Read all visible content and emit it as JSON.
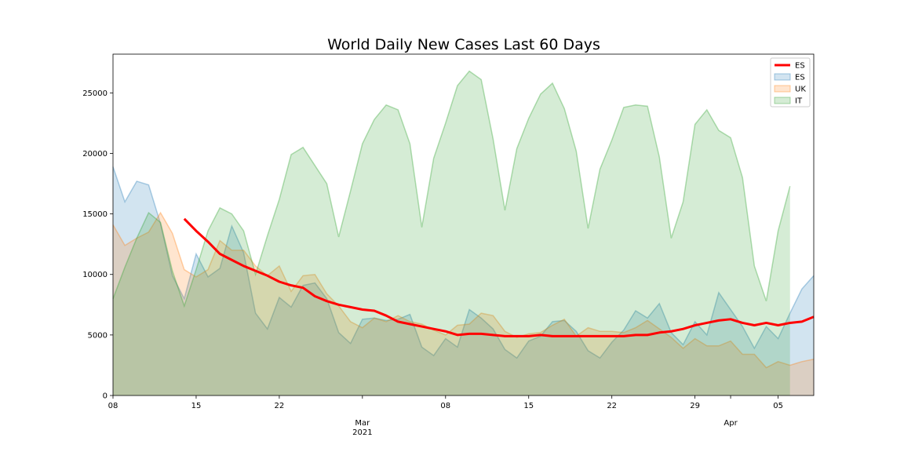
{
  "chart_data": {
    "type": "area",
    "title": "World Daily New Cases Last 60 Days",
    "xlabel": "",
    "ylabel": "",
    "x_range": [
      "2021-02-08",
      "2021-04-08"
    ],
    "ylim": [
      0,
      28200
    ],
    "y_ticks": [
      0,
      5000,
      10000,
      15000,
      20000,
      25000
    ],
    "x_ticks": [
      {
        "date": "2021-02-08",
        "label": "08",
        "sublabel": ""
      },
      {
        "date": "2021-02-15",
        "label": "15",
        "sublabel": ""
      },
      {
        "date": "2021-02-22",
        "label": "22",
        "sublabel": ""
      },
      {
        "date": "2021-03-01",
        "label": "Mar",
        "sublabel": "2021"
      },
      {
        "date": "2021-03-08",
        "label": "08",
        "sublabel": ""
      },
      {
        "date": "2021-03-15",
        "label": "15",
        "sublabel": ""
      },
      {
        "date": "2021-03-22",
        "label": "22",
        "sublabel": ""
      },
      {
        "date": "2021-03-29",
        "label": "29",
        "sublabel": ""
      },
      {
        "date": "2021-04-01",
        "label": "Apr",
        "sublabel": ""
      },
      {
        "date": "2021-04-05",
        "label": "05",
        "sublabel": ""
      }
    ],
    "grid": false,
    "legend_position": "top-right",
    "colors": {
      "ES": "#1f77b4",
      "UK": "#ff7f0e",
      "IT": "#2ca02c",
      "ES_avg": "#ff0000"
    },
    "dates": [
      "2021-02-08",
      "2021-02-09",
      "2021-02-10",
      "2021-02-11",
      "2021-02-12",
      "2021-02-13",
      "2021-02-14",
      "2021-02-15",
      "2021-02-16",
      "2021-02-17",
      "2021-02-18",
      "2021-02-19",
      "2021-02-20",
      "2021-02-21",
      "2021-02-22",
      "2021-02-23",
      "2021-02-24",
      "2021-02-25",
      "2021-02-26",
      "2021-02-27",
      "2021-02-28",
      "2021-03-01",
      "2021-03-02",
      "2021-03-03",
      "2021-03-04",
      "2021-03-05",
      "2021-03-06",
      "2021-03-07",
      "2021-03-08",
      "2021-03-09",
      "2021-03-10",
      "2021-03-11",
      "2021-03-12",
      "2021-03-13",
      "2021-03-14",
      "2021-03-15",
      "2021-03-16",
      "2021-03-17",
      "2021-03-18",
      "2021-03-19",
      "2021-03-20",
      "2021-03-21",
      "2021-03-22",
      "2021-03-23",
      "2021-03-24",
      "2021-03-25",
      "2021-03-26",
      "2021-03-27",
      "2021-03-28",
      "2021-03-29",
      "2021-03-30",
      "2021-03-31",
      "2021-04-01",
      "2021-04-02",
      "2021-04-03",
      "2021-04-04",
      "2021-04-05",
      "2021-04-06",
      "2021-04-07",
      "2021-04-08"
    ],
    "series": [
      {
        "name": "ES",
        "kind": "area",
        "values": [
          18900,
          16000,
          17700,
          17400,
          14200,
          9900,
          8000,
          11700,
          9800,
          10500,
          14000,
          11800,
          6800,
          5500,
          8100,
          7300,
          9100,
          9300,
          8000,
          5200,
          4300,
          6300,
          6400,
          6200,
          6300,
          6700,
          4000,
          3300,
          4700,
          4000,
          7100,
          6400,
          5500,
          3800,
          3100,
          4500,
          4900,
          6100,
          6200,
          5300,
          3700,
          3100,
          4400,
          5400,
          7000,
          6400,
          7600,
          5200,
          4200,
          6100,
          5000,
          8500,
          7100,
          5700,
          3900,
          5700,
          4700,
          6800,
          8800,
          9900
        ]
      },
      {
        "name": "UK",
        "kind": "area",
        "values": [
          14100,
          12400,
          13000,
          13500,
          15100,
          13400,
          10400,
          9800,
          10400,
          12800,
          12000,
          12000,
          10700,
          9900,
          10700,
          8600,
          9900,
          10000,
          8400,
          7400,
          6100,
          5600,
          6400,
          6100,
          6600,
          6100,
          5900,
          5400,
          5000,
          5800,
          5900,
          6800,
          6600,
          5300,
          4800,
          5100,
          5200,
          5800,
          6300,
          4900,
          5600,
          5300,
          5300,
          5200,
          5600,
          6200,
          5500,
          4800,
          3900,
          4700,
          4100,
          4100,
          4500,
          3400,
          3400,
          2300,
          2800,
          2500,
          2800,
          3000
        ]
      },
      {
        "name": "IT",
        "kind": "area",
        "values": [
          8000,
          10600,
          13000,
          15100,
          14300,
          10300,
          7400,
          10400,
          13600,
          15500,
          15000,
          13600,
          10000,
          13200,
          16200,
          19900,
          20500,
          19000,
          17500,
          13100,
          16900,
          20800,
          22800,
          24000,
          23600,
          20800,
          13900,
          19600,
          22500,
          25600,
          26800,
          26100,
          21200,
          15300,
          20400,
          22900,
          24900,
          25800,
          23700,
          20200,
          13800,
          18700,
          21100,
          23800,
          24000,
          23900,
          19700,
          13000,
          16000,
          22400,
          23600,
          21900,
          21300,
          18000,
          10700,
          7800,
          13600,
          17300,
          null,
          null
        ]
      },
      {
        "name": "ES",
        "kind": "line",
        "role": "rolling average",
        "values": [
          null,
          null,
          null,
          null,
          null,
          null,
          14600,
          13600,
          12700,
          11700,
          11200,
          10700,
          10300,
          9900,
          9400,
          9100,
          8900,
          8200,
          7800,
          7500,
          7300,
          7100,
          7000,
          6600,
          6100,
          5900,
          5700,
          5500,
          5300,
          5000,
          5100,
          5100,
          5000,
          4900,
          4900,
          4900,
          5000,
          4900,
          4900,
          4900,
          4900,
          4900,
          4900,
          4900,
          5000,
          5000,
          5200,
          5300,
          5500,
          5800,
          6000,
          6200,
          6300,
          6000,
          5800,
          6000,
          5800,
          6000,
          6100,
          6500
        ]
      }
    ],
    "legend": [
      "ES",
      "ES",
      "UK",
      "IT"
    ]
  }
}
